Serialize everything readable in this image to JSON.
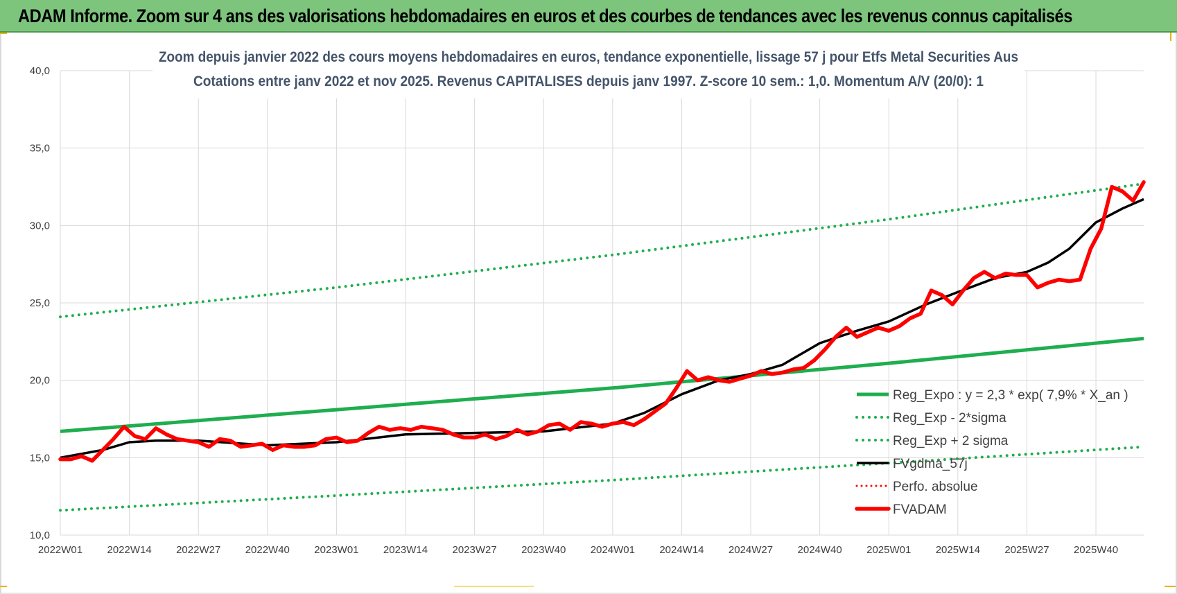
{
  "banner": {
    "title": "ADAM Informe. Zoom sur 4 ans des valorisations hebdomadaires en euros et des courbes de tendances avec les revenus connus capitalisés"
  },
  "colors": {
    "banner": "#7dc57d",
    "reg_expo": "#1fae4f",
    "fvgdma": "#000000",
    "fvadam": "#ff0000",
    "perfo": "#ff0000",
    "grid": "#d9d9d9"
  },
  "chart_data": {
    "type": "line",
    "title_lines": [
      "Zoom depuis janvier 2022 des cours moyens hebdomadaires en euros, tendance exponentielle, lissage 57 j pour Etfs Metal Securities Aus",
      "Cotations entre janv 2022 et nov 2025. Revenus CAPITALISES depuis janv 1997. Z-score 10 sem.: 1,0. Momentum A/V (20/0): 1"
    ],
    "x_tick_labels": [
      "2022W01",
      "2022W14",
      "2022W27",
      "2022W40",
      "2023W01",
      "2023W14",
      "2023W27",
      "2023W40",
      "2024W01",
      "2024W14",
      "2024W27",
      "2024W40",
      "2025W01",
      "2025W14",
      "2025W27",
      "2025W40"
    ],
    "x_tick_index": [
      0,
      13,
      26,
      39,
      52,
      65,
      78,
      91,
      104,
      117,
      130,
      143,
      156,
      169,
      182,
      195
    ],
    "x_range": [
      0,
      204
    ],
    "y_tick_labels": [
      "10,0",
      "15,0",
      "20,0",
      "25,0",
      "30,0",
      "35,0",
      "40,0"
    ],
    "y_ticks": [
      10,
      15,
      20,
      25,
      30,
      35,
      40
    ],
    "ylim": [
      10,
      40
    ],
    "grid": true,
    "legend_position": "lower-right",
    "series": [
      {
        "name": "Reg_Expo : y = 2,3 * exp( 7,9% *  X_an )",
        "style": "solid-green",
        "x": [
          0,
          52,
          104,
          156,
          204
        ],
        "values": [
          16.7,
          18.1,
          19.5,
          21.1,
          22.7
        ]
      },
      {
        "name": "Reg_Exp - 2*sigma",
        "style": "dotted-green",
        "x": [
          0,
          52,
          104,
          156,
          204
        ],
        "values": [
          11.6,
          12.55,
          13.55,
          14.65,
          15.7
        ]
      },
      {
        "name": "Reg_Exp + 2 sigma",
        "style": "dotted-green",
        "x": [
          0,
          52,
          104,
          156,
          204
        ],
        "values": [
          24.1,
          26.0,
          28.1,
          30.4,
          32.7
        ]
      },
      {
        "name": "FVgdma_57j",
        "style": "solid-black",
        "x": [
          0,
          8,
          13,
          18,
          26,
          39,
          52,
          65,
          78,
          91,
          104,
          110,
          117,
          124,
          130,
          136,
          143,
          150,
          156,
          163,
          169,
          176,
          182,
          186,
          190,
          195,
          200,
          204
        ],
        "values": [
          15.0,
          15.5,
          16.0,
          16.1,
          16.1,
          15.8,
          16.0,
          16.5,
          16.6,
          16.7,
          17.2,
          17.9,
          19.1,
          20.0,
          20.4,
          21.0,
          22.4,
          23.2,
          23.8,
          24.9,
          25.7,
          26.6,
          27.0,
          27.6,
          28.5,
          30.2,
          31.1,
          31.7
        ]
      },
      {
        "name": "Perfo. absolue",
        "style": "dotted-red",
        "x": [],
        "values": []
      },
      {
        "name": "FVADAM",
        "style": "thick-red",
        "x": [
          0,
          2,
          4,
          6,
          8,
          10,
          12,
          14,
          16,
          18,
          20,
          22,
          24,
          26,
          28,
          30,
          32,
          34,
          36,
          38,
          40,
          42,
          44,
          46,
          48,
          50,
          52,
          54,
          56,
          58,
          60,
          62,
          64,
          66,
          68,
          70,
          72,
          74,
          76,
          78,
          80,
          82,
          84,
          86,
          88,
          90,
          92,
          94,
          96,
          98,
          100,
          102,
          104,
          106,
          108,
          110,
          112,
          114,
          116,
          118,
          120,
          122,
          124,
          126,
          128,
          130,
          132,
          134,
          136,
          138,
          140,
          142,
          144,
          146,
          148,
          150,
          152,
          154,
          156,
          158,
          160,
          162,
          164,
          166,
          168,
          170,
          172,
          174,
          176,
          178,
          180,
          182,
          184,
          186,
          188,
          190,
          192,
          194,
          196,
          198,
          200,
          202,
          204
        ],
        "values": [
          14.9,
          14.9,
          15.1,
          14.8,
          15.5,
          16.2,
          17.0,
          16.4,
          16.2,
          16.9,
          16.5,
          16.2,
          16.1,
          16.0,
          15.7,
          16.2,
          16.1,
          15.7,
          15.8,
          15.9,
          15.5,
          15.8,
          15.7,
          15.7,
          15.8,
          16.2,
          16.3,
          16.0,
          16.1,
          16.6,
          17.0,
          16.8,
          16.9,
          16.8,
          17.0,
          16.9,
          16.8,
          16.5,
          16.3,
          16.3,
          16.5,
          16.2,
          16.4,
          16.8,
          16.5,
          16.7,
          17.1,
          17.2,
          16.8,
          17.3,
          17.2,
          17.0,
          17.2,
          17.3,
          17.1,
          17.5,
          18.0,
          18.5,
          19.5,
          20.6,
          20.0,
          20.2,
          20.0,
          19.9,
          20.1,
          20.3,
          20.6,
          20.4,
          20.5,
          20.7,
          20.8,
          21.3,
          22.0,
          22.8,
          23.4,
          22.8,
          23.1,
          23.4,
          23.2,
          23.5,
          24.0,
          24.3,
          25.8,
          25.5,
          24.9,
          25.8,
          26.6,
          27.0,
          26.6,
          26.9,
          26.8,
          26.8,
          26.0,
          26.3,
          26.5,
          26.4,
          26.5,
          28.5,
          29.8,
          32.5,
          32.2,
          31.6,
          32.8
        ]
      }
    ]
  }
}
